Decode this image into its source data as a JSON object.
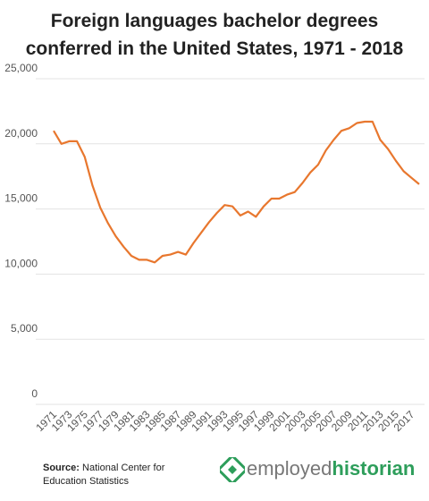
{
  "chart_data": {
    "type": "line",
    "title": "Foreign languages bachelor degrees conferred in the United States, 1971 - 2018",
    "x": [
      1971,
      1972,
      1973,
      1974,
      1975,
      1976,
      1977,
      1978,
      1979,
      1980,
      1981,
      1982,
      1983,
      1984,
      1985,
      1986,
      1987,
      1988,
      1989,
      1990,
      1991,
      1992,
      1993,
      1994,
      1995,
      1996,
      1997,
      1998,
      1999,
      2000,
      2001,
      2002,
      2003,
      2004,
      2005,
      2006,
      2007,
      2008,
      2009,
      2010,
      2011,
      2012,
      2013,
      2014,
      2015,
      2016,
      2017,
      2018
    ],
    "values": [
      21000,
      20000,
      20200,
      20200,
      19000,
      16800,
      15100,
      13900,
      12900,
      12100,
      11400,
      11100,
      11100,
      10900,
      11400,
      11500,
      11700,
      11500,
      12400,
      13200,
      14000,
      14700,
      15300,
      15200,
      14500,
      14800,
      14400,
      15200,
      15800,
      15800,
      16100,
      16300,
      17000,
      17800,
      18400,
      19500,
      20300,
      21000,
      21200,
      21600,
      21700,
      21700,
      20300,
      19600,
      18700,
      17900,
      17400,
      16900
    ],
    "color": "#e8772e",
    "xlim": [
      1971,
      2018
    ],
    "xticks": [
      1971,
      1973,
      1975,
      1977,
      1979,
      1981,
      1983,
      1985,
      1987,
      1989,
      1991,
      1993,
      1995,
      1997,
      1999,
      2001,
      2003,
      2005,
      2007,
      2009,
      2011,
      2013,
      2015,
      2017
    ],
    "ylim": [
      0,
      25000
    ],
    "yticks": [
      0,
      {
        "value": 5000,
        "label": "5,000"
      },
      {
        "value": 10000,
        "label": "10,000"
      },
      {
        "value": 15000,
        "label": "15,000"
      },
      {
        "value": 20000,
        "label": "20,000"
      },
      {
        "value": 25000,
        "label": "25,000"
      }
    ],
    "grid": true
  },
  "footer": {
    "source_label": "Source:",
    "source_text": "National Center for Education Statistics",
    "logo_part1": "employed",
    "logo_part2": "historian"
  }
}
